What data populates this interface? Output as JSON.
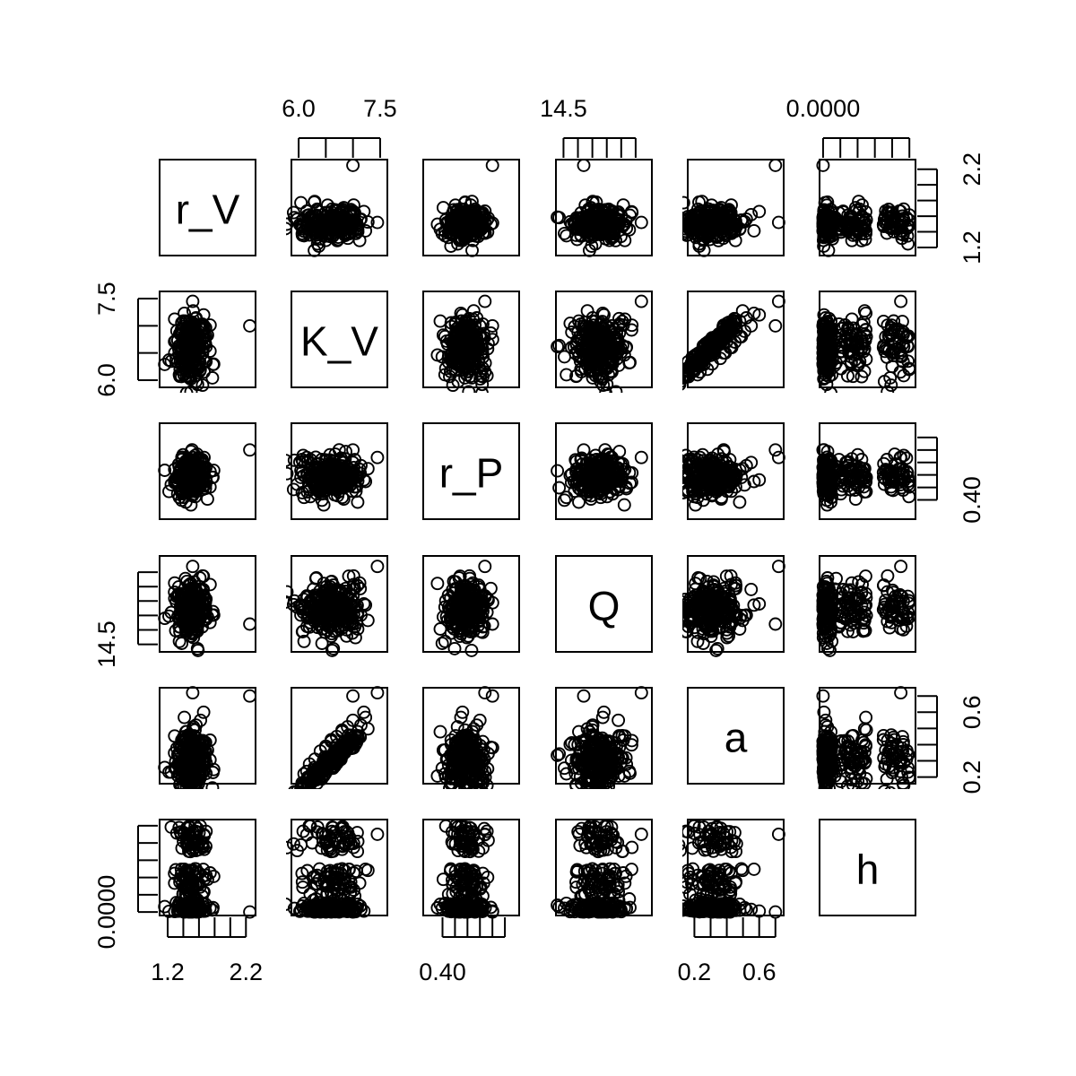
{
  "chart_data": {
    "type": "scatter",
    "variables": [
      "r_V",
      "K_V",
      "r_P",
      "Q",
      "a",
      "h"
    ],
    "axes": {
      "top": [
        {
          "col": 1,
          "ticks": [
            6.0,
            6.5,
            7.0,
            7.5
          ],
          "labels": [
            "6.0",
            "7.5"
          ],
          "label_at": [
            6.0,
            7.5
          ],
          "range": [
            5.9,
            7.6
          ]
        },
        {
          "col": 3,
          "ticks": [
            14.5,
            15.0,
            15.5,
            16.0,
            16.5,
            17.0
          ],
          "labels": [
            "14.5"
          ],
          "label_at": [
            14.5
          ],
          "range": [
            14.3,
            17.5
          ]
        },
        {
          "col": 5,
          "ticks": [
            0.0,
            2e-05,
            4e-05,
            6e-05,
            8e-05,
            0.0001
          ],
          "labels": [
            "0.0000"
          ],
          "label_at": [
            0.0
          ],
          "range": [
            -2e-06,
            0.000105
          ]
        }
      ],
      "bottom": [
        {
          "col": 0,
          "ticks": [
            1.2,
            1.4,
            1.6,
            1.8,
            2.0,
            2.2
          ],
          "labels": [
            "1.2",
            "2.2"
          ],
          "label_at": [
            1.2,
            2.2
          ],
          "range": [
            1.12,
            2.3
          ]
        },
        {
          "col": 2,
          "ticks": [
            0.4,
            0.45,
            0.5,
            0.55,
            0.6,
            0.65
          ],
          "labels": [
            "0.40"
          ],
          "label_at": [
            0.4
          ],
          "range": [
            0.33,
            0.7
          ]
        },
        {
          "col": 4,
          "ticks": [
            0.2,
            0.3,
            0.4,
            0.5,
            0.6,
            0.7
          ],
          "labels": [
            "0.2",
            "0.6"
          ],
          "label_at": [
            0.2,
            0.6
          ],
          "range": [
            0.17,
            0.74
          ]
        }
      ],
      "left": [
        {
          "row": 1,
          "ticks": [
            6.0,
            6.5,
            7.0,
            7.5
          ],
          "labels": [
            "6.0",
            "7.5"
          ],
          "label_at": [
            6.0,
            7.5
          ],
          "range": [
            5.9,
            7.6
          ]
        },
        {
          "row": 3,
          "ticks": [
            14.5,
            15.0,
            15.5,
            16.0,
            16.5,
            17.0
          ],
          "labels": [
            "14.5"
          ],
          "label_at": [
            14.5
          ],
          "range": [
            14.3,
            17.5
          ]
        },
        {
          "row": 5,
          "ticks": [
            0.0,
            2e-05,
            4e-05,
            6e-05,
            8e-05,
            0.0001
          ],
          "labels": [
            "0.0000"
          ],
          "label_at": [
            0.0
          ],
          "range": [
            -2e-06,
            0.000105
          ]
        }
      ],
      "right": [
        {
          "row": 0,
          "ticks": [
            1.2,
            1.4,
            1.6,
            1.8,
            2.0,
            2.2
          ],
          "labels": [
            "1.2",
            "2.2"
          ],
          "label_at": [
            1.2,
            2.2
          ],
          "range": [
            1.12,
            2.3
          ]
        },
        {
          "row": 2,
          "ticks": [
            0.4,
            0.45,
            0.5,
            0.55,
            0.6,
            0.65
          ],
          "labels": [
            "0.40"
          ],
          "label_at": [
            0.4
          ],
          "range": [
            0.33,
            0.7
          ]
        },
        {
          "row": 4,
          "ticks": [
            0.2,
            0.3,
            0.4,
            0.5,
            0.6,
            0.7
          ],
          "labels": [
            "0.2",
            "0.6"
          ],
          "label_at": [
            0.2,
            0.6
          ],
          "range": [
            0.17,
            0.74
          ]
        }
      ]
    },
    "grid": false,
    "legend": "none",
    "marker": "open-circle",
    "color": "#000000",
    "points": [
      {
        "r_V": 1.5,
        "K_V": 6.4,
        "r_P": 0.47,
        "Q": 15.7,
        "a": 0.36,
        "h": 0.0
      },
      {
        "r_V": 1.44,
        "K_V": 6.8,
        "r_P": 0.52,
        "Q": 15.4,
        "a": 0.48,
        "h": 2e-06
      },
      {
        "r_V": 1.58,
        "K_V": 6.6,
        "r_P": 0.49,
        "Q": 16.0,
        "a": 0.42,
        "h": 0.0
      },
      {
        "r_V": 1.36,
        "K_V": 6.2,
        "r_P": 0.44,
        "Q": 15.1,
        "a": 0.28,
        "h": 1e-06
      },
      {
        "r_V": 1.62,
        "K_V": 7.0,
        "r_P": 0.55,
        "Q": 16.4,
        "a": 0.55,
        "h": 3e-06
      },
      {
        "r_V": 1.47,
        "K_V": 6.5,
        "r_P": 0.5,
        "Q": 15.8,
        "a": 0.39,
        "h": 0.0
      },
      {
        "r_V": 1.53,
        "K_V": 6.9,
        "r_P": 0.46,
        "Q": 15.5,
        "a": 0.51,
        "h": 5e-06
      },
      {
        "r_V": 1.41,
        "K_V": 6.3,
        "r_P": 0.53,
        "Q": 16.2,
        "a": 0.31,
        "h": 0.0
      },
      {
        "r_V": 1.66,
        "K_V": 7.2,
        "r_P": 0.48,
        "Q": 15.9,
        "a": 0.6,
        "h": 1e-06
      },
      {
        "r_V": 1.5,
        "K_V": 6.7,
        "r_P": 0.5,
        "Q": 15.6,
        "a": 0.45,
        "h": 4e-06
      },
      {
        "r_V": 2.25,
        "K_V": 7.0,
        "r_P": 0.6,
        "Q": 15.2,
        "a": 0.7,
        "h": 0.0
      },
      {
        "r_V": 1.35,
        "K_V": 6.1,
        "r_P": 0.41,
        "Q": 14.6,
        "a": 0.22,
        "h": 1e-05
      },
      {
        "r_V": 1.52,
        "K_V": 7.45,
        "r_P": 0.57,
        "Q": 17.2,
        "a": 0.72,
        "h": 9e-05
      },
      {
        "r_V": 1.49,
        "K_V": 6.6,
        "r_P": 0.51,
        "Q": 15.7,
        "a": 0.43,
        "h": 7e-05
      },
      {
        "r_V": 1.55,
        "K_V": 6.8,
        "r_P": 0.49,
        "Q": 15.5,
        "a": 0.49,
        "h": 5e-05
      },
      {
        "r_V": 1.46,
        "K_V": 6.5,
        "r_P": 0.52,
        "Q": 16.1,
        "a": 0.38,
        "h": 3e-05
      }
    ]
  }
}
